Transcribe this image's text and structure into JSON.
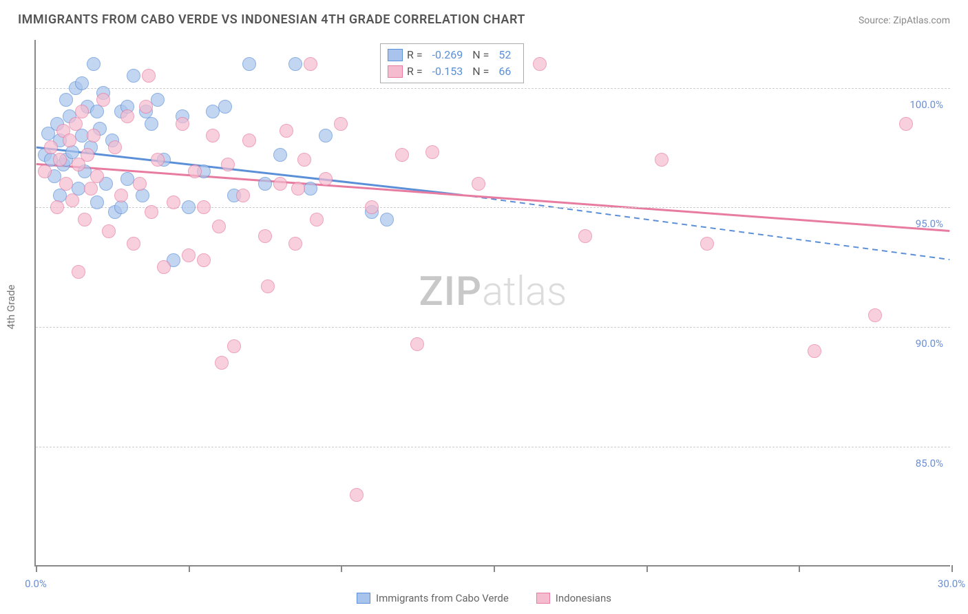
{
  "title": "IMMIGRANTS FROM CABO VERDE VS INDONESIAN 4TH GRADE CORRELATION CHART",
  "source": "Source: ZipAtlas.com",
  "y_axis_title": "4th Grade",
  "watermark": {
    "a": "ZIP",
    "b": "atlas"
  },
  "chart": {
    "type": "scatter",
    "xlim": [
      0,
      30
    ],
    "ylim": [
      80,
      102
    ],
    "x_ticks": [
      0,
      5,
      10,
      15,
      20,
      25,
      30
    ],
    "x_tick_labels": {
      "0": "0.0%",
      "30": "30.0%"
    },
    "y_grid": [
      85,
      90,
      95,
      100
    ],
    "y_tick_labels": [
      "85.0%",
      "90.0%",
      "95.0%",
      "100.0%"
    ],
    "background_color": "#ffffff",
    "grid_color": "#cccccc",
    "axis_color": "#888888",
    "tick_label_color": "#6b8fd4",
    "label_fontsize": 15,
    "title_fontsize": 18,
    "point_radius": 10,
    "point_fill_opacity": 0.25,
    "point_stroke_width": 1.5,
    "trend_line_width": 3
  },
  "series": [
    {
      "name": "Immigrants from Cabo Verde",
      "color_stroke": "#5b8fd8",
      "color_fill": "#a9c4ec",
      "R": "-0.269",
      "N": "52",
      "trend": {
        "x1": 0,
        "y1": 97.5,
        "x2_solid": 14,
        "y2_solid": 95.5,
        "x2_dash": 30,
        "y2_dash": 92.8
      },
      "points": [
        [
          0.3,
          97.2
        ],
        [
          0.4,
          98.1
        ],
        [
          0.5,
          97.0
        ],
        [
          0.6,
          96.3
        ],
        [
          0.7,
          98.5
        ],
        [
          0.8,
          97.8
        ],
        [
          0.9,
          96.8
        ],
        [
          1.0,
          99.5
        ],
        [
          1.0,
          97.0
        ],
        [
          1.1,
          98.8
        ],
        [
          1.2,
          97.3
        ],
        [
          1.3,
          100.0
        ],
        [
          1.4,
          95.8
        ],
        [
          1.5,
          98.0
        ],
        [
          1.6,
          96.5
        ],
        [
          1.7,
          99.2
        ],
        [
          1.8,
          97.5
        ],
        [
          1.9,
          101.0
        ],
        [
          2.0,
          95.2
        ],
        [
          2.1,
          98.3
        ],
        [
          2.2,
          99.8
        ],
        [
          2.3,
          96.0
        ],
        [
          2.5,
          97.8
        ],
        [
          2.6,
          94.8
        ],
        [
          2.8,
          99.0
        ],
        [
          3.0,
          96.2
        ],
        [
          3.2,
          100.5
        ],
        [
          3.5,
          95.5
        ],
        [
          3.8,
          98.5
        ],
        [
          3.0,
          99.2
        ],
        [
          4.2,
          97.0
        ],
        [
          4.5,
          92.8
        ],
        [
          4.8,
          98.8
        ],
        [
          5.0,
          95.0
        ],
        [
          5.5,
          96.5
        ],
        [
          5.8,
          99.0
        ],
        [
          6.2,
          99.2
        ],
        [
          6.5,
          95.5
        ],
        [
          7.0,
          101.0
        ],
        [
          7.5,
          96.0
        ],
        [
          8.0,
          97.2
        ],
        [
          8.5,
          101.0
        ],
        [
          9.0,
          95.8
        ],
        [
          9.5,
          98.0
        ],
        [
          3.6,
          99.0
        ],
        [
          1.5,
          100.2
        ],
        [
          2.8,
          95.0
        ],
        [
          11.0,
          94.8
        ],
        [
          11.5,
          94.5
        ],
        [
          2.0,
          99.0
        ],
        [
          0.8,
          95.5
        ],
        [
          4.0,
          99.5
        ]
      ]
    },
    {
      "name": "Indonesians",
      "color_stroke": "#e77ba0",
      "color_fill": "#f5bcd0",
      "R": "-0.153",
      "N": "66",
      "trend": {
        "x1": 0,
        "y1": 96.8,
        "x2_solid": 30,
        "y2_solid": 94.0,
        "x2_dash": 30,
        "y2_dash": 94.0
      },
      "points": [
        [
          0.3,
          96.5
        ],
        [
          0.5,
          97.5
        ],
        [
          0.7,
          95.0
        ],
        [
          0.8,
          97.0
        ],
        [
          0.9,
          98.2
        ],
        [
          1.0,
          96.0
        ],
        [
          1.1,
          97.8
        ],
        [
          1.2,
          95.3
        ],
        [
          1.3,
          98.5
        ],
        [
          1.4,
          96.8
        ],
        [
          1.5,
          99.0
        ],
        [
          1.6,
          94.5
        ],
        [
          1.7,
          97.2
        ],
        [
          1.8,
          95.8
        ],
        [
          1.9,
          98.0
        ],
        [
          2.0,
          96.3
        ],
        [
          2.2,
          99.5
        ],
        [
          2.4,
          94.0
        ],
        [
          2.6,
          97.5
        ],
        [
          2.8,
          95.5
        ],
        [
          3.0,
          98.8
        ],
        [
          3.2,
          93.5
        ],
        [
          3.4,
          96.0
        ],
        [
          3.6,
          99.2
        ],
        [
          3.7,
          100.5
        ],
        [
          3.8,
          94.8
        ],
        [
          4.0,
          97.0
        ],
        [
          4.2,
          92.5
        ],
        [
          1.4,
          92.3
        ],
        [
          4.5,
          95.2
        ],
        [
          4.8,
          98.5
        ],
        [
          5.0,
          93.0
        ],
        [
          5.2,
          96.5
        ],
        [
          5.5,
          95.0
        ],
        [
          5.5,
          92.8
        ],
        [
          5.8,
          98.0
        ],
        [
          6.0,
          94.2
        ],
        [
          6.3,
          96.8
        ],
        [
          6.5,
          89.2
        ],
        [
          6.8,
          95.5
        ],
        [
          7.0,
          97.8
        ],
        [
          6.1,
          88.5
        ],
        [
          7.5,
          93.8
        ],
        [
          7.6,
          91.7
        ],
        [
          8.0,
          96.0
        ],
        [
          8.2,
          98.2
        ],
        [
          8.5,
          93.5
        ],
        [
          8.8,
          97.0
        ],
        [
          9.0,
          101.0
        ],
        [
          9.2,
          94.5
        ],
        [
          9.5,
          96.2
        ],
        [
          10.0,
          98.5
        ],
        [
          10.5,
          83.0
        ],
        [
          11.0,
          95.0
        ],
        [
          12.5,
          89.3
        ],
        [
          12.0,
          97.2
        ],
        [
          13.0,
          97.3
        ],
        [
          14.5,
          96.0
        ],
        [
          16.5,
          101.0
        ],
        [
          18.0,
          93.8
        ],
        [
          20.5,
          97.0
        ],
        [
          22.0,
          93.5
        ],
        [
          25.5,
          89.0
        ],
        [
          27.5,
          90.5
        ],
        [
          28.5,
          98.5
        ],
        [
          8.6,
          95.8
        ]
      ]
    }
  ],
  "bottom_legend": [
    {
      "label": "Immigrants from Cabo Verde",
      "fill": "#a9c4ec",
      "stroke": "#5b8fd8"
    },
    {
      "label": "Indonesians",
      "fill": "#f5bcd0",
      "stroke": "#e77ba0"
    }
  ]
}
